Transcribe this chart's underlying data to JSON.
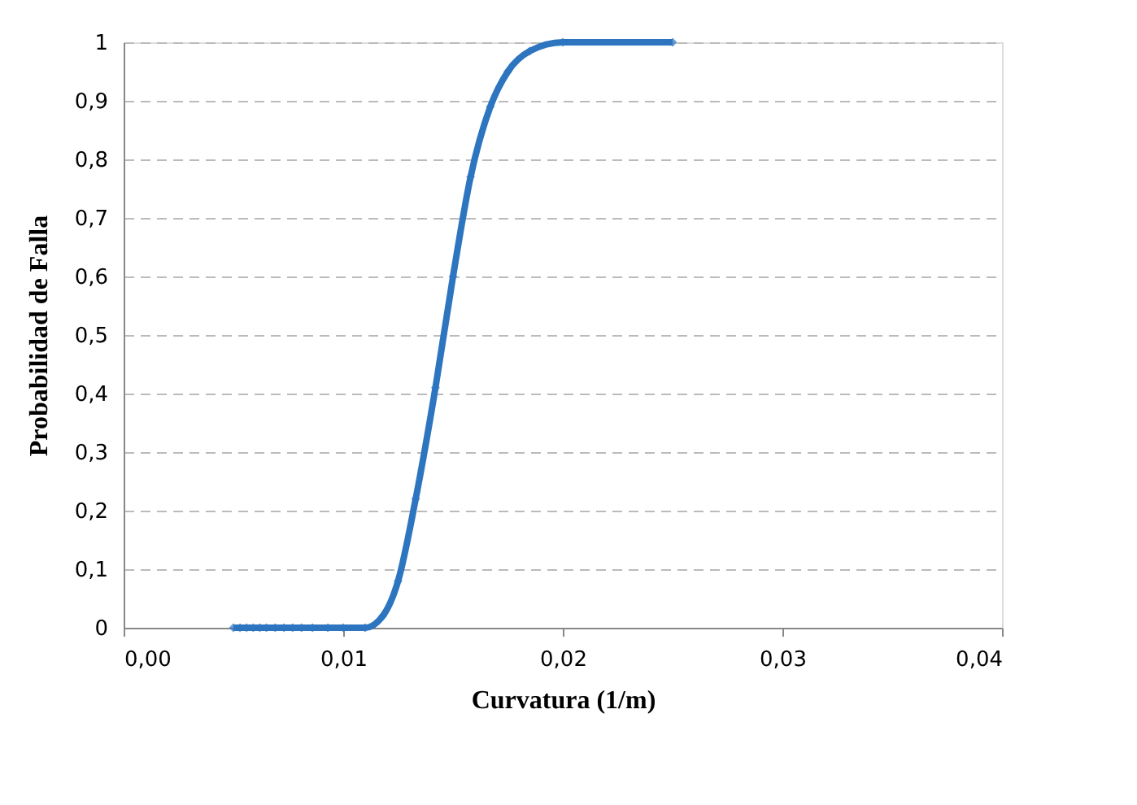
{
  "chart_data": {
    "type": "line",
    "xlabel": "Curvatura  (1/m)",
    "ylabel": "Probabilidad  de Falla",
    "x": [
      0.005,
      0.0053,
      0.0056,
      0.0059,
      0.0062,
      0.0065,
      0.0069,
      0.0073,
      0.0077,
      0.0081,
      0.0086,
      0.0093,
      0.01,
      0.011,
      0.0118,
      0.0125,
      0.0133,
      0.0142,
      0.015,
      0.0158,
      0.0167,
      0.0175,
      0.0185,
      0.02,
      0.025
    ],
    "series": [
      {
        "color": "#2e75c0",
        "values": [
          0,
          0,
          0,
          0,
          0,
          0,
          0,
          0,
          0,
          0,
          0,
          0,
          0,
          0,
          0.02,
          0.08,
          0.22,
          0.41,
          0.6,
          0.77,
          0.89,
          0.95,
          0.985,
          1,
          1
        ]
      }
    ],
    "xlim": [
      0,
      0.04
    ],
    "ylim": [
      0,
      1
    ],
    "xticks": [
      {
        "value": 0,
        "label": "0,00"
      },
      {
        "value": 0.01,
        "label": "0,01"
      },
      {
        "value": 0.02,
        "label": "0,02"
      },
      {
        "value": 0.03,
        "label": "0,03"
      },
      {
        "value": 0.04,
        "label": "0,04"
      }
    ],
    "yticks": [
      0,
      {
        "value": 0.1,
        "label": "0,1"
      },
      {
        "value": 0.2,
        "label": "0,2"
      },
      {
        "value": 0.3,
        "label": "0,3"
      },
      {
        "value": 0.4,
        "label": "0,4"
      },
      {
        "value": 0.5,
        "label": "0,5"
      },
      {
        "value": 0.6,
        "label": "0,6"
      },
      {
        "value": 0.7,
        "label": "0,7"
      },
      {
        "value": 0.8,
        "label": "0,8"
      },
      {
        "value": 0.9,
        "label": "0,9"
      },
      1
    ],
    "grid": "y",
    "marker": "diamond",
    "line_style": "solid",
    "legend": false
  }
}
